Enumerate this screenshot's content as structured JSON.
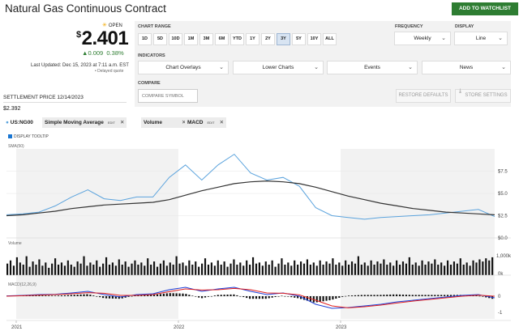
{
  "header": {
    "title": "Natural Gas Continuous Contract",
    "watchlist_label": "ADD TO WATCHLIST"
  },
  "quote": {
    "status": "OPEN",
    "currency": "$",
    "price": "2.401",
    "change": "0.009",
    "change_pct": "0.38%",
    "last_updated": "Last Updated: Dec 15, 2023 at 7:11 a.m. EST",
    "delayed": "Delayed quote",
    "settlement_label": "SETTLEMENT PRICE 12/14/2023",
    "settlement_value": "$2.392"
  },
  "controls": {
    "chart_range_label": "CHART RANGE",
    "ranges": [
      "1D",
      "5D",
      "10D",
      "1M",
      "3M",
      "6M",
      "YTD",
      "1Y",
      "2Y",
      "3Y",
      "5Y",
      "10Y",
      "ALL"
    ],
    "active_range": "3Y",
    "frequency_label": "FREQUENCY",
    "frequency_value": "Weekly",
    "display_label": "DISPLAY",
    "display_value": "Line",
    "indicators_label": "INDICATORS",
    "indicators": [
      "Chart Overlays",
      "Lower Charts",
      "Events",
      "News"
    ],
    "compare_label": "COMPARE",
    "compare_placeholder": "COMPARE SYMBOL",
    "restore_label": "RESTORE DEFAULTS",
    "store_label": "STORE SETTINGS"
  },
  "chips": [
    {
      "label": "US:NG00"
    },
    {
      "label": "Simple Moving Average",
      "edit": "EDIT"
    },
    {
      "label": "Volume"
    },
    {
      "label": "MACD",
      "edit": "EDIT"
    }
  ],
  "tooltip_label": "DISPLAY TOOLTIP",
  "colors": {
    "price": "#5ba3dd",
    "sma": "#333333",
    "macd": "#1f3fd6",
    "signal": "#e02020",
    "up": "#2e7d32"
  },
  "chart_data": [
    {
      "type": "line",
      "panel": "price",
      "label": "SMA(50)",
      "x": [
        "2021-01",
        "2021-03",
        "2021-05",
        "2021-07",
        "2021-09",
        "2021-10",
        "2021-12",
        "2022-01",
        "2022-02",
        "2022-03",
        "2022-04",
        "2022-05",
        "2022-06",
        "2022-07",
        "2022-08",
        "2022-09",
        "2022-10",
        "2022-11",
        "2022-12",
        "2023-01",
        "2023-02",
        "2023-03",
        "2023-04",
        "2023-05",
        "2023-06",
        "2023-07",
        "2023-08",
        "2023-09",
        "2023-10",
        "2023-11",
        "2023-12"
      ],
      "series": [
        {
          "values": [
            2.6,
            2.7,
            2.9,
            3.6,
            4.6,
            5.4,
            4.4,
            4.2,
            4.6,
            4.6,
            6.8,
            8.2,
            6.5,
            8.2,
            9.4,
            7.3,
            6.5,
            6.8,
            5.8,
            3.4,
            2.5,
            2.3,
            2.1,
            2.3,
            2.4,
            2.5,
            2.6,
            2.8,
            3.0,
            3.2,
            2.4
          ]
        },
        {
          "values": [
            2.5,
            2.6,
            2.8,
            3.0,
            3.3,
            3.5,
            3.7,
            3.8,
            3.9,
            4.0,
            4.3,
            4.8,
            5.3,
            5.7,
            6.1,
            6.3,
            6.4,
            6.3,
            6.1,
            5.7,
            5.2,
            4.7,
            4.3,
            3.9,
            3.6,
            3.3,
            3.1,
            2.9,
            2.8,
            2.7,
            2.6
          ]
        }
      ],
      "y_ticks": [
        "$7.5",
        "$5.0",
        "$2.5",
        "$0.0"
      ],
      "ylim": [
        0,
        10
      ]
    },
    {
      "type": "bar",
      "panel": "volume",
      "label": "Volume",
      "y_ticks": [
        "1,000k",
        "0k"
      ],
      "values": [
        0.55,
        0.7,
        0.45,
        0.85,
        0.6,
        0.5,
        0.9,
        0.4,
        0.65,
        0.5,
        0.75,
        0.45,
        0.6,
        0.35,
        0.55,
        0.8,
        0.5,
        0.6,
        0.45,
        0.7,
        0.5,
        0.4,
        0.65,
        0.55,
        0.9,
        0.45,
        0.6,
        0.5,
        0.7,
        0.4,
        0.55,
        0.85,
        0.5,
        0.6,
        0.45,
        0.75,
        0.5,
        0.65,
        0.4,
        0.55,
        0.7,
        0.5,
        0.6,
        0.45,
        0.8,
        0.5,
        0.65,
        0.4,
        0.55,
        0.7,
        0.45,
        0.6,
        0.5,
        0.9,
        0.55,
        0.6,
        0.45,
        0.7,
        0.5,
        0.65,
        0.4,
        0.55,
        0.8,
        0.5,
        0.6,
        0.45,
        0.7,
        0.5,
        0.65,
        0.4,
        0.55,
        0.75,
        0.5,
        0.6,
        0.45,
        0.7,
        0.5,
        0.85,
        0.55,
        0.6,
        0.45,
        0.65,
        0.5,
        0.7,
        0.4,
        0.55,
        0.8,
        0.5,
        0.6,
        0.45,
        0.7,
        0.5,
        0.65,
        0.55,
        0.75,
        0.5,
        0.6,
        0.45,
        0.7,
        0.5,
        0.65,
        0.55,
        0.8,
        0.5,
        0.6,
        0.45,
        0.7,
        0.5,
        0.65,
        0.55,
        0.9,
        0.5,
        0.6,
        0.45,
        0.7,
        0.5,
        0.65,
        0.55,
        0.75,
        0.5,
        0.6,
        0.45,
        0.7,
        0.5,
        0.65,
        0.55,
        0.85,
        0.5,
        0.6,
        0.45,
        0.7,
        0.5,
        0.65,
        0.55,
        0.75,
        0.5,
        0.6,
        0.45,
        0.7,
        0.5,
        0.65,
        0.55,
        0.8,
        0.5,
        0.6,
        0.45,
        0.7,
        0.6,
        0.75,
        0.65,
        0.8,
        0.7,
        0.85
      ]
    },
    {
      "type": "line",
      "panel": "macd",
      "label": "MACD(12,26,9)",
      "y_ticks": [
        "0",
        "-1"
      ],
      "ylim": [
        -1.3,
        0.7
      ],
      "macd": [
        0.02,
        0.05,
        0.1,
        0.12,
        0.2,
        0.3,
        0.1,
        -0.05,
        0.1,
        0.15,
        0.4,
        0.55,
        0.3,
        0.45,
        0.55,
        0.3,
        0.1,
        0.2,
        0.0,
        -0.5,
        -0.75,
        -0.7,
        -0.6,
        -0.5,
        -0.35,
        -0.25,
        -0.15,
        -0.05,
        0.05,
        0.1,
        -0.1
      ],
      "signal": [
        0.0,
        0.03,
        0.07,
        0.1,
        0.15,
        0.22,
        0.18,
        0.05,
        0.05,
        0.1,
        0.28,
        0.45,
        0.38,
        0.4,
        0.48,
        0.4,
        0.2,
        0.18,
        0.08,
        -0.25,
        -0.6,
        -0.72,
        -0.65,
        -0.55,
        -0.42,
        -0.3,
        -0.2,
        -0.1,
        0.0,
        0.06,
        0.0
      ]
    }
  ],
  "x_axis": [
    "2021",
    "2022",
    "2023"
  ]
}
